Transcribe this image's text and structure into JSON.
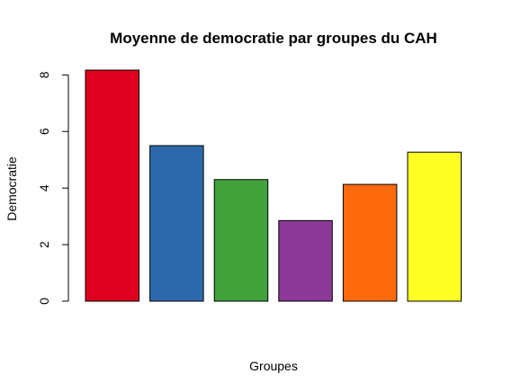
{
  "chart_data": {
    "type": "bar",
    "title": "Moyenne de democratie par groupes du CAH",
    "xlabel": "Groupes",
    "ylabel": "Democratie",
    "categories": [
      "",
      "",
      "",
      "",
      "",
      ""
    ],
    "values": [
      8.17,
      5.5,
      4.3,
      2.85,
      4.13,
      5.27
    ],
    "colors": [
      "#de001e",
      "#2d69aa",
      "#41a23b",
      "#8a3a96",
      "#ff6a0e",
      "#ffff26"
    ],
    "yticks": [
      "0",
      "2",
      "4",
      "6",
      "8"
    ],
    "ylim": [
      0,
      8.17
    ],
    "grid": false,
    "legend": "none"
  }
}
